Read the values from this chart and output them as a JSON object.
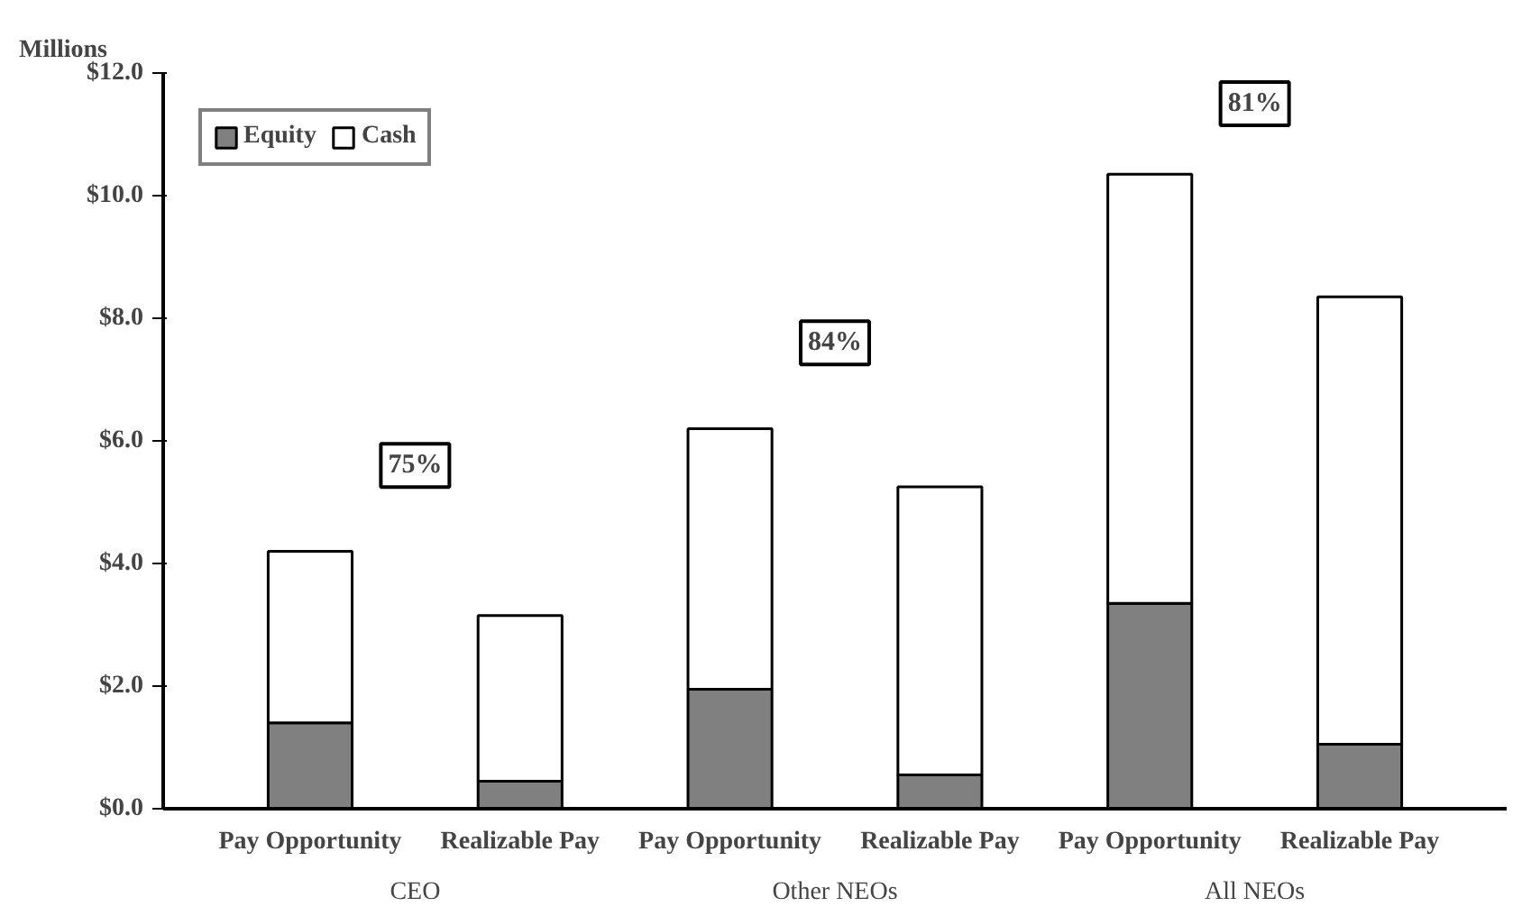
{
  "chart_data": {
    "type": "bar",
    "stacked": true,
    "ylabel": "Millions",
    "categories": [
      "Pay Opportunity",
      "Realizable Pay",
      "Pay Opportunity",
      "Realizable Pay",
      "Pay Opportunity",
      "Realizable Pay"
    ],
    "series": [
      {
        "name": "Equity",
        "color": "#808080",
        "values": [
          1.4,
          0.45,
          1.95,
          0.55,
          3.35,
          1.05
        ]
      },
      {
        "name": "Cash",
        "color": "#ffffff",
        "values": [
          2.8,
          2.7,
          4.25,
          4.7,
          7.0,
          7.3
        ]
      }
    ],
    "ylim": [
      0,
      12
    ],
    "yticks": [
      {
        "value": 0,
        "label": "$0.0"
      },
      {
        "value": 2,
        "label": "$2.0"
      },
      {
        "value": 4,
        "label": "$4.0"
      },
      {
        "value": 6,
        "label": "$6.0"
      },
      {
        "value": 8,
        "label": "$8.0"
      },
      {
        "value": 10,
        "label": "$10.0"
      },
      {
        "value": 12,
        "label": "$12.0"
      }
    ],
    "annotations": [
      "75%",
      "84%",
      "81%",
      "CEO",
      "Other NEOs",
      "All NEOs"
    ],
    "legend": "top left",
    "grid": false
  }
}
